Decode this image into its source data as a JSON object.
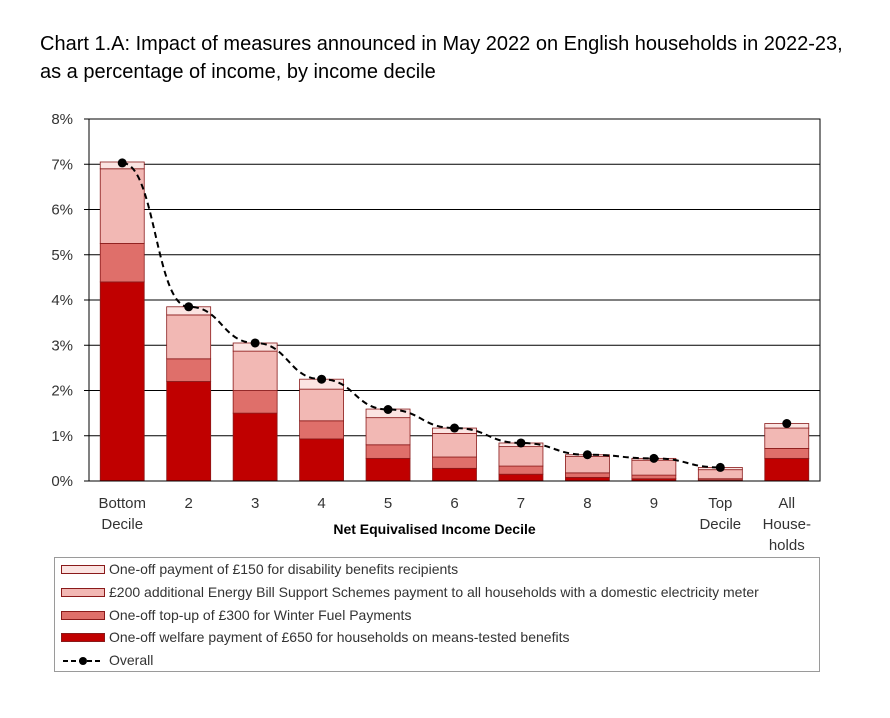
{
  "title": "Chart 1.A: Impact of measures announced in May 2022 on English households in 2022-23, as a percentage of income, by income decile",
  "colors": {
    "welfare": "#c00000",
    "winter_fuel": "#df6f6a",
    "energy_bill": "#f2b8b4",
    "disability": "#fbe4e2",
    "overall": "#000000",
    "grid": "#000000"
  },
  "chart_data": {
    "type": "bar",
    "stacked": true,
    "title": "Chart 1.A: Impact of measures announced in May 2022 on English households in 2022-23, as a percentage of income, by income decile",
    "xlabel": "Net Equivalised Income Decile",
    "ylabel": "",
    "ylim": [
      0,
      8
    ],
    "yticks": [
      "0%",
      "1%",
      "2%",
      "3%",
      "4%",
      "5%",
      "6%",
      "7%",
      "8%"
    ],
    "grid": true,
    "legend_position": "bottom",
    "categories": [
      [
        "Bottom",
        "Decile"
      ],
      [
        "2"
      ],
      [
        "3"
      ],
      [
        "4"
      ],
      [
        "5"
      ],
      [
        "6"
      ],
      [
        "7"
      ],
      [
        "8"
      ],
      [
        "9"
      ],
      [
        "Top",
        "Decile"
      ],
      [
        "All",
        "House-",
        "holds"
      ]
    ],
    "series": [
      {
        "name": "One-off welfare payment of £650 for households on means-tested benefits",
        "color_key": "welfare",
        "values": [
          4.4,
          2.2,
          1.5,
          0.93,
          0.5,
          0.28,
          0.15,
          0.08,
          0.05,
          0.02,
          0.5
        ]
      },
      {
        "name": "One-off  top-up of £300 for Winter Fuel Payments",
        "color_key": "winter_fuel",
        "values": [
          0.85,
          0.5,
          0.5,
          0.4,
          0.3,
          0.25,
          0.18,
          0.1,
          0.08,
          0.03,
          0.22
        ]
      },
      {
        "name": "£200 additional Energy Bill Support Schemes payment to all households with a domestic electricity meter",
        "color_key": "energy_bill",
        "values": [
          1.65,
          0.97,
          0.87,
          0.7,
          0.6,
          0.52,
          0.43,
          0.36,
          0.33,
          0.2,
          0.45
        ]
      },
      {
        "name": "One-off payment of £150 for  disability benefits  recipients",
        "color_key": "disability",
        "values": [
          0.15,
          0.18,
          0.18,
          0.22,
          0.19,
          0.12,
          0.08,
          0.04,
          0.04,
          0.05,
          0.1
        ]
      }
    ],
    "overall": {
      "name": "Overall",
      "values": [
        7.03,
        3.85,
        3.05,
        2.25,
        1.58,
        1.17,
        0.84,
        0.58,
        0.5,
        0.3,
        1.27
      ]
    }
  },
  "legend": {
    "items": [
      {
        "label": "One-off payment of £150 for  disability benefits  recipients",
        "color_key": "disability",
        "kind": "box"
      },
      {
        "label": "£200 additional Energy Bill Support Schemes payment to all households with a domestic electricity meter",
        "color_key": "energy_bill",
        "kind": "box"
      },
      {
        "label": "One-off  top-up of £300 for Winter Fuel Payments",
        "color_key": "winter_fuel",
        "kind": "box"
      },
      {
        "label": "One-off welfare payment of £650 for households on means-tested benefits",
        "color_key": "welfare",
        "kind": "box"
      },
      {
        "label": "Overall",
        "color_key": "overall",
        "kind": "line"
      }
    ]
  }
}
